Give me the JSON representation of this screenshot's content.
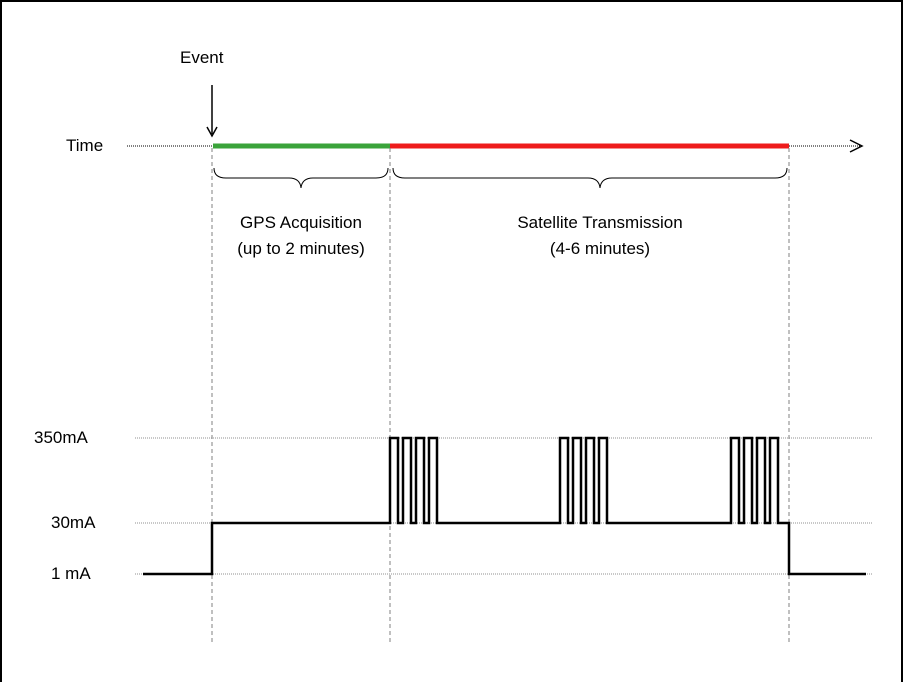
{
  "event_label": "Event",
  "time_label": "Time",
  "phases": [
    {
      "name": "GPS Acquisition",
      "duration": "(up to 2 minutes)",
      "color": "#3aa33a"
    },
    {
      "name": "Satellite Transmission",
      "duration": "(4-6 minutes)",
      "color": "#ee1c1c"
    }
  ],
  "current_levels": [
    {
      "label": "350mA"
    },
    {
      "label": "30mA"
    },
    {
      "label": "1 mA"
    }
  ]
}
